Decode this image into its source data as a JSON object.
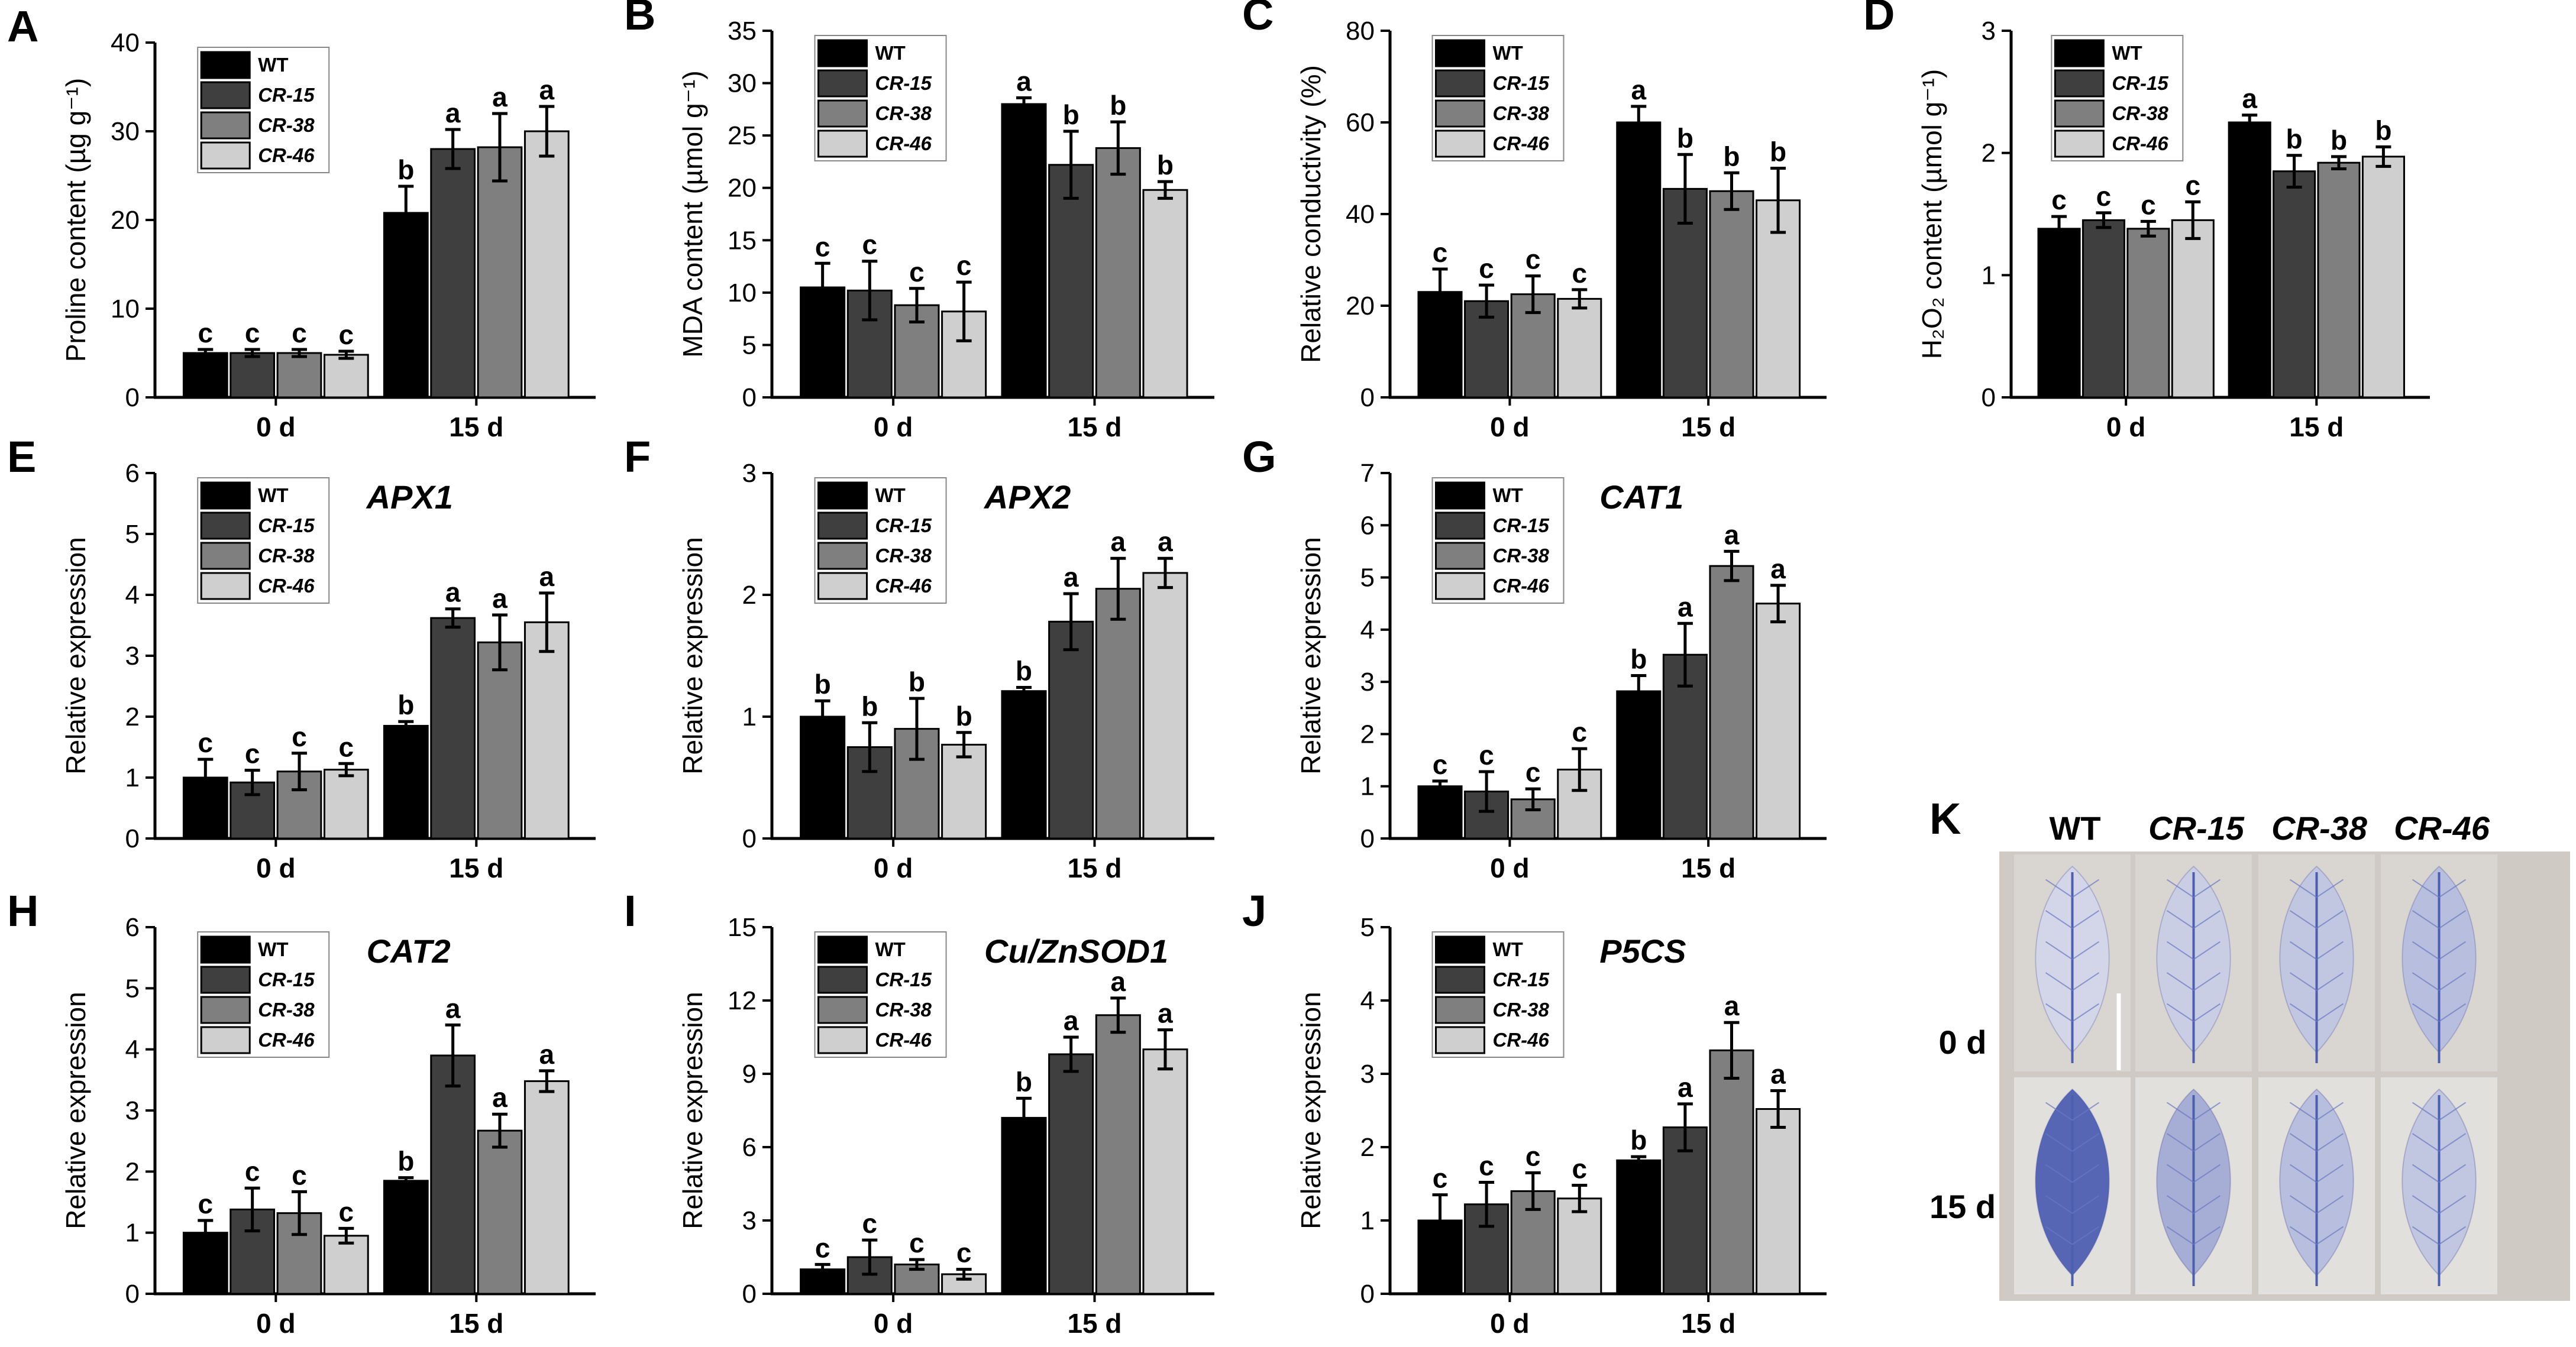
{
  "groups": [
    "0 d",
    "15 d"
  ],
  "legend": [
    "WT",
    "CR-15",
    "CR-38",
    "CR-46"
  ],
  "series_colors": [
    "#000000",
    "#3f3f3f",
    "#7f7f7f",
    "#cfcfcf"
  ],
  "chart_data": [
    {
      "panel": "A",
      "type": "bar",
      "title": "",
      "ylabel": "Proline content (µg g⁻¹)",
      "ylim": [
        0,
        40
      ],
      "yticks": [
        0,
        10,
        20,
        30,
        40
      ],
      "categories": [
        "0 d",
        "15 d"
      ],
      "series": [
        {
          "name": "WT",
          "values": [
            5.0,
            20.8
          ],
          "errors": [
            0.4,
            3.0
          ],
          "letters": [
            "c",
            "b"
          ]
        },
        {
          "name": "CR-15",
          "values": [
            5.0,
            28.0
          ],
          "errors": [
            0.4,
            2.2
          ],
          "letters": [
            "c",
            "a"
          ]
        },
        {
          "name": "CR-38",
          "values": [
            5.0,
            28.2
          ],
          "errors": [
            0.4,
            3.8
          ],
          "letters": [
            "c",
            "a"
          ]
        },
        {
          "name": "CR-46",
          "values": [
            4.8,
            30.0
          ],
          "errors": [
            0.4,
            2.8
          ],
          "letters": [
            "c",
            "a"
          ]
        }
      ]
    },
    {
      "panel": "B",
      "type": "bar",
      "title": "",
      "ylabel": "MDA content (µmol g⁻¹)",
      "ylim": [
        0,
        35
      ],
      "yticks": [
        0,
        5,
        10,
        15,
        20,
        25,
        30,
        35
      ],
      "categories": [
        "0 d",
        "15 d"
      ],
      "series": [
        {
          "name": "WT",
          "values": [
            10.5,
            28.0
          ],
          "errors": [
            2.3,
            0.6
          ],
          "letters": [
            "c",
            "a"
          ]
        },
        {
          "name": "CR-15",
          "values": [
            10.2,
            22.2
          ],
          "errors": [
            2.8,
            3.2
          ],
          "letters": [
            "c",
            "b"
          ]
        },
        {
          "name": "CR-38",
          "values": [
            8.8,
            23.8
          ],
          "errors": [
            1.6,
            2.5
          ],
          "letters": [
            "c",
            "b"
          ]
        },
        {
          "name": "CR-46",
          "values": [
            8.2,
            19.8
          ],
          "errors": [
            2.8,
            0.8
          ],
          "letters": [
            "c",
            "b"
          ]
        }
      ]
    },
    {
      "panel": "C",
      "type": "bar",
      "title": "",
      "ylabel": "Relative conductivity (%)",
      "ylim": [
        0,
        80
      ],
      "yticks": [
        0,
        20,
        40,
        60,
        80
      ],
      "categories": [
        "0 d",
        "15 d"
      ],
      "series": [
        {
          "name": "WT",
          "values": [
            23.0,
            60.0
          ],
          "errors": [
            5.0,
            3.5
          ],
          "letters": [
            "c",
            "a"
          ]
        },
        {
          "name": "CR-15",
          "values": [
            21.0,
            45.5
          ],
          "errors": [
            3.5,
            7.5
          ],
          "letters": [
            "c",
            "b"
          ]
        },
        {
          "name": "CR-38",
          "values": [
            22.5,
            45.0
          ],
          "errors": [
            4.0,
            4.0
          ],
          "letters": [
            "c",
            "b"
          ]
        },
        {
          "name": "CR-46",
          "values": [
            21.5,
            43.0
          ],
          "errors": [
            2.0,
            7.0
          ],
          "letters": [
            "c",
            "b"
          ]
        }
      ]
    },
    {
      "panel": "D",
      "type": "bar",
      "title": "",
      "ylabel": "H₂O₂ content (µmol g⁻¹)",
      "ylim": [
        0,
        3
      ],
      "yticks": [
        0,
        1,
        2,
        3
      ],
      "categories": [
        "0 d",
        "15 d"
      ],
      "series": [
        {
          "name": "WT",
          "values": [
            1.38,
            2.25
          ],
          "errors": [
            0.1,
            0.06
          ],
          "letters": [
            "c",
            "a"
          ]
        },
        {
          "name": "CR-15",
          "values": [
            1.45,
            1.85
          ],
          "errors": [
            0.06,
            0.13
          ],
          "letters": [
            "c",
            "b"
          ]
        },
        {
          "name": "CR-38",
          "values": [
            1.38,
            1.92
          ],
          "errors": [
            0.06,
            0.05
          ],
          "letters": [
            "c",
            "b"
          ]
        },
        {
          "name": "CR-46",
          "values": [
            1.45,
            1.97
          ],
          "errors": [
            0.15,
            0.08
          ],
          "letters": [
            "c",
            "b"
          ]
        }
      ]
    },
    {
      "panel": "E",
      "type": "bar",
      "title": "APX1",
      "ylabel": "Relative expression",
      "ylim": [
        0,
        6
      ],
      "yticks": [
        0,
        1,
        2,
        3,
        4,
        5,
        6
      ],
      "categories": [
        "0 d",
        "15 d"
      ],
      "series": [
        {
          "name": "WT",
          "values": [
            1.0,
            1.85
          ],
          "errors": [
            0.3,
            0.07
          ],
          "letters": [
            "c",
            "b"
          ]
        },
        {
          "name": "CR-15",
          "values": [
            0.92,
            3.62
          ],
          "errors": [
            0.2,
            0.15
          ],
          "letters": [
            "c",
            "a"
          ]
        },
        {
          "name": "CR-38",
          "values": [
            1.1,
            3.22
          ],
          "errors": [
            0.3,
            0.45
          ],
          "letters": [
            "c",
            "a"
          ]
        },
        {
          "name": "CR-46",
          "values": [
            1.13,
            3.55
          ],
          "errors": [
            0.1,
            0.48
          ],
          "letters": [
            "c",
            "a"
          ]
        }
      ]
    },
    {
      "panel": "F",
      "type": "bar",
      "title": "APX2",
      "ylabel": "Relative expression",
      "ylim": [
        0,
        3
      ],
      "yticks": [
        0,
        1,
        2,
        3
      ],
      "categories": [
        "0 d",
        "15 d"
      ],
      "series": [
        {
          "name": "WT",
          "values": [
            1.0,
            1.21
          ],
          "errors": [
            0.13,
            0.03
          ],
          "letters": [
            "b",
            "b"
          ]
        },
        {
          "name": "CR-15",
          "values": [
            0.75,
            1.78
          ],
          "errors": [
            0.2,
            0.23
          ],
          "letters": [
            "b",
            "a"
          ]
        },
        {
          "name": "CR-38",
          "values": [
            0.9,
            2.05
          ],
          "errors": [
            0.25,
            0.25
          ],
          "letters": [
            "b",
            "a"
          ]
        },
        {
          "name": "CR-46",
          "values": [
            0.77,
            2.18
          ],
          "errors": [
            0.1,
            0.12
          ],
          "letters": [
            "b",
            "a"
          ]
        }
      ]
    },
    {
      "panel": "G",
      "type": "bar",
      "title": "CAT1",
      "ylabel": "Relative expression",
      "ylim": [
        0,
        7
      ],
      "yticks": [
        0,
        1,
        2,
        3,
        4,
        5,
        6,
        7
      ],
      "categories": [
        "0 d",
        "15 d"
      ],
      "series": [
        {
          "name": "WT",
          "values": [
            1.0,
            2.82
          ],
          "errors": [
            0.1,
            0.3
          ],
          "letters": [
            "c",
            "b"
          ]
        },
        {
          "name": "CR-15",
          "values": [
            0.9,
            3.52
          ],
          "errors": [
            0.38,
            0.6
          ],
          "letters": [
            "c",
            "a"
          ]
        },
        {
          "name": "CR-38",
          "values": [
            0.75,
            5.22
          ],
          "errors": [
            0.2,
            0.28
          ],
          "letters": [
            "c",
            "a"
          ]
        },
        {
          "name": "CR-46",
          "values": [
            1.32,
            4.5
          ],
          "errors": [
            0.4,
            0.35
          ],
          "letters": [
            "c",
            "a"
          ]
        }
      ]
    },
    {
      "panel": "H",
      "type": "bar",
      "title": "CAT2",
      "ylabel": "Relative expression",
      "ylim": [
        0,
        6
      ],
      "yticks": [
        0,
        1,
        2,
        3,
        4,
        5,
        6
      ],
      "categories": [
        "0 d",
        "15 d"
      ],
      "series": [
        {
          "name": "WT",
          "values": [
            1.0,
            1.85
          ],
          "errors": [
            0.2,
            0.05
          ],
          "letters": [
            "c",
            "b"
          ]
        },
        {
          "name": "CR-15",
          "values": [
            1.38,
            3.9
          ],
          "errors": [
            0.35,
            0.5
          ],
          "letters": [
            "c",
            "a"
          ]
        },
        {
          "name": "CR-38",
          "values": [
            1.32,
            2.67
          ],
          "errors": [
            0.35,
            0.27
          ],
          "letters": [
            "c",
            "a"
          ]
        },
        {
          "name": "CR-46",
          "values": [
            0.95,
            3.48
          ],
          "errors": [
            0.12,
            0.17
          ],
          "letters": [
            "c",
            "a"
          ]
        }
      ]
    },
    {
      "panel": "I",
      "type": "bar",
      "title": "Cu/ZnSOD1",
      "ylabel": "Relative expression",
      "ylim": [
        0,
        15
      ],
      "yticks": [
        0,
        3,
        6,
        9,
        12,
        15
      ],
      "categories": [
        "0 d",
        "15 d"
      ],
      "series": [
        {
          "name": "WT",
          "values": [
            1.0,
            7.2
          ],
          "errors": [
            0.2,
            0.8
          ],
          "letters": [
            "c",
            "b"
          ]
        },
        {
          "name": "CR-15",
          "values": [
            1.5,
            9.8
          ],
          "errors": [
            0.7,
            0.7
          ],
          "letters": [
            "c",
            "a"
          ]
        },
        {
          "name": "CR-38",
          "values": [
            1.2,
            11.4
          ],
          "errors": [
            0.2,
            0.7
          ],
          "letters": [
            "c",
            "a"
          ]
        },
        {
          "name": "CR-46",
          "values": [
            0.8,
            10.0
          ],
          "errors": [
            0.2,
            0.8
          ],
          "letters": [
            "c",
            "a"
          ]
        }
      ]
    },
    {
      "panel": "J",
      "type": "bar",
      "title": "P5CS",
      "ylabel": "Relative expression",
      "ylim": [
        0,
        5
      ],
      "yticks": [
        0,
        1,
        2,
        3,
        4,
        5
      ],
      "categories": [
        "0 d",
        "15 d"
      ],
      "series": [
        {
          "name": "WT",
          "values": [
            1.0,
            1.82
          ],
          "errors": [
            0.35,
            0.05
          ],
          "letters": [
            "c",
            "b"
          ]
        },
        {
          "name": "CR-15",
          "values": [
            1.22,
            2.27
          ],
          "errors": [
            0.3,
            0.32
          ],
          "letters": [
            "c",
            "a"
          ]
        },
        {
          "name": "CR-38",
          "values": [
            1.4,
            3.32
          ],
          "errors": [
            0.25,
            0.38
          ],
          "letters": [
            "c",
            "a"
          ]
        },
        {
          "name": "CR-46",
          "values": [
            1.3,
            2.52
          ],
          "errors": [
            0.18,
            0.25
          ],
          "letters": [
            "c",
            "a"
          ]
        }
      ]
    }
  ],
  "photo": {
    "panel": "K",
    "columns": [
      "WT",
      "CR-15",
      "CR-38",
      "CR-46"
    ],
    "rows": [
      "0 d",
      "15 d"
    ],
    "stain_intensity": [
      [
        0.15,
        0.2,
        0.25,
        0.3
      ],
      [
        0.85,
        0.4,
        0.3,
        0.25
      ]
    ]
  }
}
